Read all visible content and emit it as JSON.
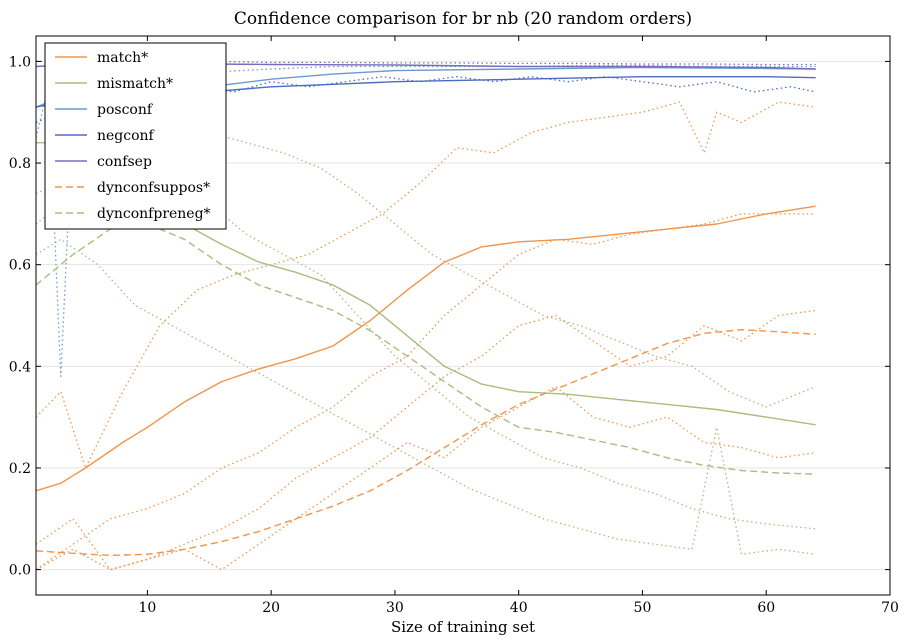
{
  "chart_data": {
    "type": "line",
    "title": "Confidence comparison for br nb (20 random orders)",
    "xlabel": "Size of training set",
    "ylabel": "",
    "xlim": [
      1,
      70
    ],
    "ylim": [
      -0.05,
      1.05
    ],
    "xticks": [
      10,
      20,
      30,
      40,
      50,
      60,
      70
    ],
    "yticks": [
      0.0,
      0.2,
      0.4,
      0.6,
      0.8,
      1.0
    ],
    "grid": "horizontal",
    "legend_position": "top-left",
    "series": [
      {
        "name": "match*",
        "color": "#f0954a",
        "dash": "solid",
        "x": [
          1,
          3,
          5,
          8,
          10,
          13,
          16,
          19,
          22,
          25,
          28,
          31,
          34,
          37,
          40,
          44,
          48,
          52,
          56,
          60,
          64
        ],
        "y": [
          0.155,
          0.17,
          0.2,
          0.25,
          0.28,
          0.33,
          0.37,
          0.395,
          0.415,
          0.44,
          0.49,
          0.55,
          0.605,
          0.635,
          0.645,
          0.65,
          0.66,
          0.67,
          0.68,
          0.7,
          0.715
        ]
      },
      {
        "name": "mismatch*",
        "color": "#a9bd7e",
        "dash": "solid",
        "x": [
          1,
          2,
          4,
          6,
          8,
          10,
          13,
          16,
          19,
          22,
          25,
          28,
          31,
          34,
          37,
          40,
          44,
          48,
          52,
          56,
          60,
          64
        ],
        "y": [
          0.84,
          0.84,
          0.79,
          0.76,
          0.73,
          0.71,
          0.68,
          0.64,
          0.605,
          0.585,
          0.56,
          0.52,
          0.46,
          0.4,
          0.365,
          0.35,
          0.345,
          0.335,
          0.325,
          0.315,
          0.3,
          0.285
        ]
      },
      {
        "name": "posconf",
        "color": "#6a9bcf",
        "dash": "solid",
        "x": [
          1,
          2,
          5,
          10,
          15,
          20,
          25,
          30,
          40,
          50,
          60,
          64
        ],
        "y": [
          0.91,
          0.92,
          0.93,
          0.94,
          0.95,
          0.965,
          0.975,
          0.982,
          0.985,
          0.988,
          0.986,
          0.985
        ]
      },
      {
        "name": "negconf",
        "color": "#4c6bc2",
        "dash": "solid",
        "x": [
          1,
          2,
          5,
          10,
          15,
          20,
          25,
          30,
          40,
          50,
          60,
          64
        ],
        "y": [
          0.91,
          0.915,
          0.92,
          0.93,
          0.94,
          0.95,
          0.955,
          0.96,
          0.965,
          0.97,
          0.97,
          0.968
        ]
      },
      {
        "name": "confsep",
        "color": "#7a6bc1",
        "dash": "solid",
        "x": [
          1,
          3,
          5,
          10,
          15,
          20,
          30,
          40,
          50,
          60,
          64
        ],
        "y": [
          0.99,
          0.993,
          0.995,
          0.995,
          0.995,
          0.994,
          0.993,
          0.99,
          0.99,
          0.988,
          0.985
        ]
      },
      {
        "name": "dynconfsuppos*",
        "color": "#f0954a",
        "dash": "dashed",
        "x": [
          1,
          4,
          7,
          10,
          13,
          16,
          19,
          22,
          25,
          28,
          31,
          34,
          37,
          40,
          43,
          46,
          49,
          52,
          55,
          58,
          61,
          64
        ],
        "y": [
          0.037,
          0.032,
          0.028,
          0.03,
          0.04,
          0.055,
          0.075,
          0.1,
          0.125,
          0.155,
          0.195,
          0.24,
          0.285,
          0.325,
          0.355,
          0.385,
          0.415,
          0.445,
          0.465,
          0.472,
          0.468,
          0.463
        ]
      },
      {
        "name": "dynconfpreneg*",
        "color": "#a9bd7e",
        "dash": "dashed",
        "x": [
          1,
          4,
          7,
          10,
          13,
          16,
          19,
          22,
          25,
          28,
          31,
          34,
          37,
          40,
          43,
          46,
          49,
          52,
          55,
          58,
          61,
          64
        ],
        "y": [
          0.56,
          0.62,
          0.67,
          0.68,
          0.65,
          0.6,
          0.56,
          0.535,
          0.51,
          0.47,
          0.42,
          0.37,
          0.32,
          0.28,
          0.27,
          0.255,
          0.24,
          0.22,
          0.205,
          0.195,
          0.19,
          0.188
        ]
      },
      {
        "name": "",
        "color": "#f0954a",
        "dash": "dotted",
        "x": [
          1,
          3,
          5,
          8,
          11,
          14,
          17,
          20,
          23,
          26,
          29,
          32,
          35,
          38,
          41,
          44,
          47,
          50,
          53,
          55,
          56,
          58,
          61,
          64
        ],
        "y": [
          0.3,
          0.35,
          0.2,
          0.35,
          0.48,
          0.55,
          0.58,
          0.6,
          0.62,
          0.66,
          0.7,
          0.76,
          0.83,
          0.82,
          0.86,
          0.88,
          0.89,
          0.9,
          0.92,
          0.82,
          0.9,
          0.88,
          0.92,
          0.91
        ]
      },
      {
        "name": "",
        "color": "#f0954a",
        "dash": "dotted",
        "x": [
          1,
          4,
          7,
          10,
          13,
          16,
          19,
          22,
          25,
          28,
          31,
          34,
          37,
          40,
          43,
          46,
          49,
          52,
          55,
          58,
          61,
          64
        ],
        "y": [
          0.0,
          0.05,
          0.1,
          0.12,
          0.15,
          0.2,
          0.23,
          0.28,
          0.32,
          0.38,
          0.42,
          0.5,
          0.56,
          0.62,
          0.65,
          0.64,
          0.66,
          0.67,
          0.68,
          0.7,
          0.7,
          0.7
        ]
      },
      {
        "name": "",
        "color": "#f0954a",
        "dash": "dotted",
        "x": [
          1,
          4,
          7,
          10,
          13,
          16,
          19,
          22,
          25,
          28,
          31,
          34,
          37,
          40,
          43,
          46,
          49,
          52,
          55,
          58,
          61,
          64
        ],
        "y": [
          0.0,
          0.04,
          0.0,
          0.02,
          0.05,
          0.08,
          0.12,
          0.18,
          0.22,
          0.26,
          0.32,
          0.38,
          0.42,
          0.48,
          0.5,
          0.45,
          0.4,
          0.42,
          0.48,
          0.45,
          0.5,
          0.51
        ]
      },
      {
        "name": "",
        "color": "#f0954a",
        "dash": "dotted",
        "x": [
          1,
          4,
          7,
          10,
          13,
          16,
          19,
          22,
          25,
          28,
          31,
          34,
          37,
          40,
          43,
          46,
          49,
          52,
          55,
          58,
          61,
          64
        ],
        "y": [
          0.05,
          0.1,
          0.0,
          0.02,
          0.04,
          0.0,
          0.05,
          0.1,
          0.15,
          0.2,
          0.25,
          0.22,
          0.28,
          0.32,
          0.36,
          0.3,
          0.28,
          0.3,
          0.25,
          0.24,
          0.22,
          0.23
        ]
      },
      {
        "name": "",
        "color": "#a9bd7e",
        "dash": "dotted",
        "x": [
          1,
          3,
          6,
          9,
          12,
          15,
          18,
          21,
          24,
          27,
          30,
          33,
          36,
          39,
          42,
          45,
          48,
          51,
          54,
          57,
          60,
          64
        ],
        "y": [
          0.74,
          0.76,
          0.82,
          0.86,
          0.87,
          0.86,
          0.84,
          0.82,
          0.79,
          0.74,
          0.68,
          0.62,
          0.58,
          0.54,
          0.5,
          0.48,
          0.45,
          0.42,
          0.4,
          0.35,
          0.32,
          0.36
        ]
      },
      {
        "name": "",
        "color": "#a9bd7e",
        "dash": "dotted",
        "x": [
          1,
          3,
          6,
          9,
          12,
          15,
          18,
          21,
          24,
          27,
          30,
          33,
          36,
          39,
          42,
          45,
          48,
          51,
          54,
          57,
          60,
          64
        ],
        "y": [
          0.68,
          0.72,
          0.78,
          0.79,
          0.76,
          0.72,
          0.66,
          0.62,
          0.58,
          0.5,
          0.42,
          0.36,
          0.3,
          0.26,
          0.22,
          0.2,
          0.17,
          0.15,
          0.12,
          0.1,
          0.09,
          0.08
        ]
      },
      {
        "name": "",
        "color": "#a9bd7e",
        "dash": "dotted",
        "x": [
          1,
          3,
          6,
          9,
          12,
          15,
          18,
          21,
          24,
          27,
          30,
          33,
          36,
          39,
          42,
          45,
          48,
          51,
          54,
          56,
          58,
          61,
          64
        ],
        "y": [
          0.62,
          0.65,
          0.6,
          0.52,
          0.48,
          0.44,
          0.4,
          0.36,
          0.32,
          0.28,
          0.24,
          0.2,
          0.16,
          0.13,
          0.1,
          0.08,
          0.06,
          0.05,
          0.04,
          0.28,
          0.03,
          0.04,
          0.03
        ]
      },
      {
        "name": "",
        "color": "#6a9bcf",
        "dash": "dotted",
        "x": [
          1,
          2,
          3,
          4,
          6,
          9,
          12,
          16,
          20,
          25,
          30,
          35,
          40,
          45,
          50,
          55,
          60,
          64
        ],
        "y": [
          0.85,
          0.95,
          0.38,
          0.9,
          0.96,
          0.97,
          0.97,
          0.98,
          0.985,
          0.99,
          0.99,
          0.99,
          0.99,
          0.992,
          0.992,
          0.99,
          0.99,
          0.99
        ]
      },
      {
        "name": "",
        "color": "#4c6bc2",
        "dash": "dotted",
        "x": [
          1,
          3,
          5,
          8,
          11,
          14,
          17,
          20,
          23,
          26,
          29,
          32,
          35,
          38,
          41,
          44,
          47,
          50,
          53,
          56,
          59,
          62,
          64
        ],
        "y": [
          0.88,
          0.9,
          0.93,
          0.94,
          0.93,
          0.95,
          0.94,
          0.96,
          0.95,
          0.96,
          0.97,
          0.96,
          0.97,
          0.96,
          0.97,
          0.96,
          0.97,
          0.96,
          0.95,
          0.96,
          0.94,
          0.95,
          0.94
        ]
      },
      {
        "name": "",
        "color": "#7a6bc1",
        "dash": "dotted",
        "x": [
          1,
          5,
          10,
          15,
          20,
          25,
          30,
          35,
          40,
          45,
          50,
          55,
          60,
          64
        ],
        "y": [
          1.0,
          1.0,
          1.0,
          1.0,
          0.998,
          0.998,
          0.997,
          0.997,
          0.996,
          0.996,
          0.995,
          0.995,
          0.994,
          0.994
        ]
      }
    ]
  }
}
